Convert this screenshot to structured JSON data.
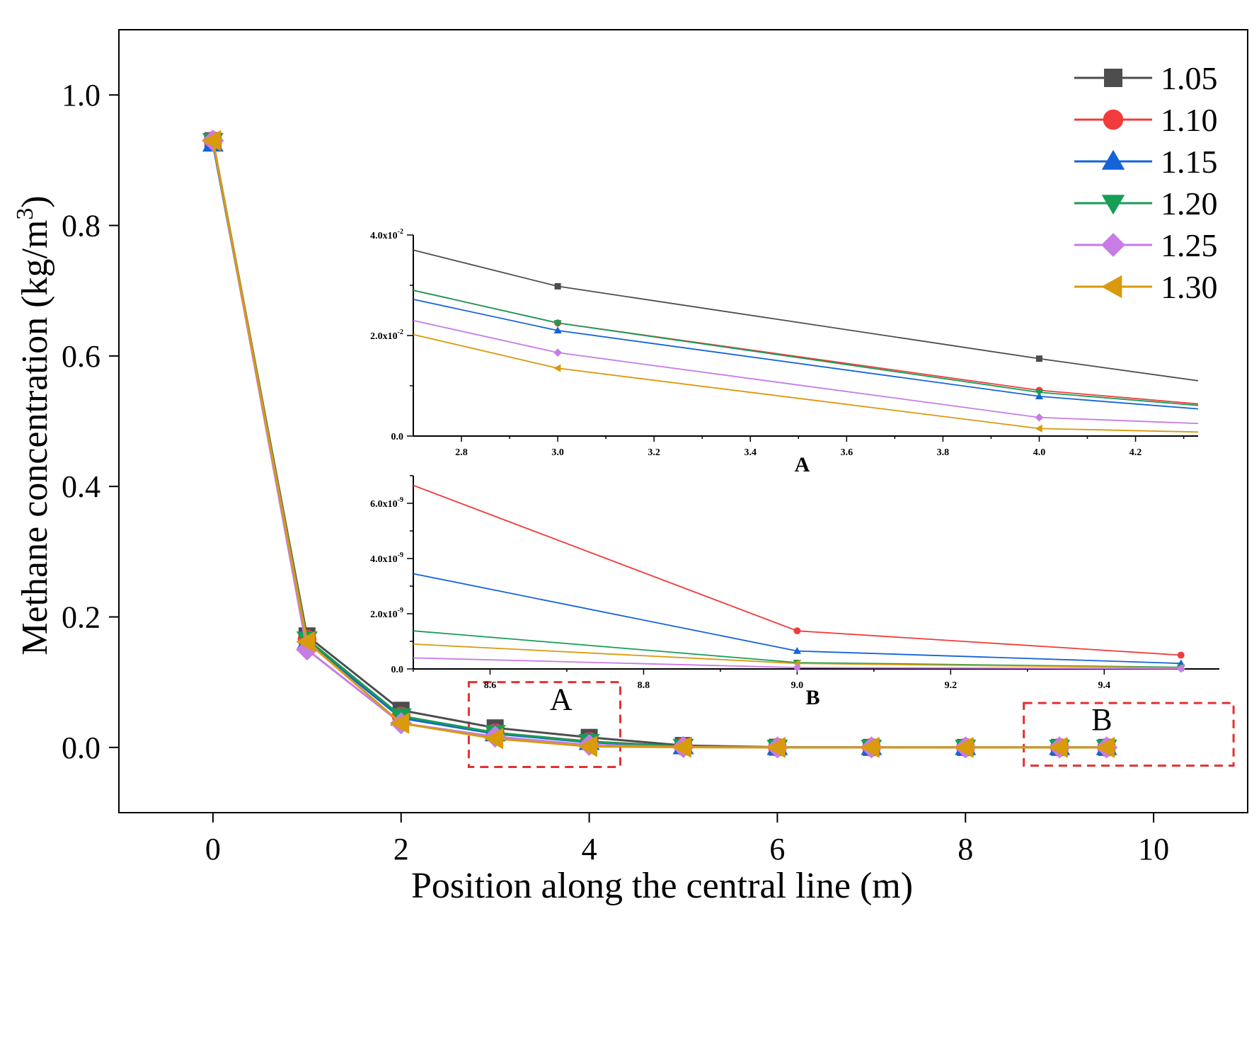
{
  "chart_data": [
    {
      "id": "main",
      "type": "line",
      "title": "",
      "xlabel": "Position along the central line (m)",
      "ylabel": "Methane concentration (kg/m",
      "ylabel_sup": "3",
      "ylabel_close": ")",
      "xlim": [
        -1,
        11
      ],
      "ylim": [
        -0.1,
        1.1
      ],
      "xticks": [
        0,
        2,
        4,
        6,
        8,
        10
      ],
      "yticks": [
        0.0,
        0.2,
        0.4,
        0.6,
        0.8,
        1.0
      ],
      "ytick_labels": [
        "0.0",
        "0.2",
        "0.4",
        "0.6",
        "0.8",
        "1.0"
      ],
      "grid": false,
      "legend_position": "top-right",
      "x": [
        0,
        1,
        2,
        3,
        4,
        5,
        6,
        7,
        8,
        9,
        9.5
      ],
      "series": [
        {
          "name": "1.05",
          "color": "#4d4d4d",
          "marker": "square",
          "values": [
            0.93,
            0.171,
            0.057,
            0.03,
            0.0154,
            0.003,
            0.0003,
            0.0,
            0.0,
            0.0,
            0.0
          ]
        },
        {
          "name": "1.10",
          "color": "#f03c3c",
          "marker": "circle",
          "values": [
            0.93,
            0.166,
            0.048,
            0.0225,
            0.0091,
            0.0015,
            0.0001,
            0.0,
            0.0,
            0.0,
            0.0
          ]
        },
        {
          "name": "1.15",
          "color": "#1464d8",
          "marker": "triangle-up",
          "values": [
            0.925,
            0.162,
            0.045,
            0.021,
            0.0078,
            0.0012,
            0.0001,
            0.0,
            0.0,
            0.0,
            0.0
          ]
        },
        {
          "name": "1.20",
          "color": "#159e56",
          "marker": "triangle-down",
          "values": [
            0.93,
            0.166,
            0.048,
            0.0225,
            0.0087,
            0.0014,
            0.0001,
            0.0,
            0.0,
            0.0,
            0.0
          ]
        },
        {
          "name": "1.25",
          "color": "#c77ce6",
          "marker": "diamond",
          "values": [
            0.93,
            0.15,
            0.037,
            0.0165,
            0.0037,
            0.0005,
            0.0,
            0.0,
            0.0,
            0.0,
            0.0
          ]
        },
        {
          "name": "1.30",
          "color": "#d99a0c",
          "marker": "triangle-left",
          "values": [
            0.93,
            0.162,
            0.037,
            0.0135,
            0.0015,
            0.0002,
            0.0,
            0.0,
            0.0,
            0.0,
            0.0
          ]
        }
      ],
      "annotations": [
        "A",
        "B"
      ]
    },
    {
      "id": "inset-A",
      "type": "line",
      "title": "A",
      "xlim": [
        2.7,
        4.33
      ],
      "ylim": [
        0,
        0.04
      ],
      "xticks": [
        2.8,
        3.0,
        3.2,
        3.4,
        3.6,
        3.8,
        4.0,
        4.2
      ],
      "xtick_labels": [
        "2.8",
        "3.0",
        "3.2",
        "3.4",
        "3.6",
        "3.8",
        "4.0",
        "4.2"
      ],
      "yticks": [
        0,
        0.02,
        0.04
      ],
      "ytick_labels": [
        {
          "base": "0.0",
          "exp": ""
        },
        {
          "base": "2.0x10",
          "exp": "-2"
        },
        {
          "base": "4.0x10",
          "exp": "-2"
        }
      ],
      "series": [
        {
          "name": "1.05",
          "points": [
            [
              2.7,
              0.037
            ],
            [
              3.0,
              0.0298
            ],
            [
              4.0,
              0.0154
            ],
            [
              4.33,
              0.011
            ]
          ]
        },
        {
          "name": "1.10",
          "points": [
            [
              2.7,
              0.029
            ],
            [
              3.0,
              0.0225
            ],
            [
              4.0,
              0.0091
            ],
            [
              4.33,
              0.0064
            ]
          ]
        },
        {
          "name": "1.15",
          "points": [
            [
              2.7,
              0.0272
            ],
            [
              3.0,
              0.021
            ],
            [
              4.0,
              0.0079
            ],
            [
              4.33,
              0.0054
            ]
          ]
        },
        {
          "name": "1.20",
          "points": [
            [
              2.7,
              0.029
            ],
            [
              3.0,
              0.0225
            ],
            [
              4.0,
              0.0087
            ],
            [
              4.33,
              0.0061
            ]
          ]
        },
        {
          "name": "1.25",
          "points": [
            [
              2.7,
              0.023
            ],
            [
              3.0,
              0.0166
            ],
            [
              4.0,
              0.0037
            ],
            [
              4.33,
              0.0025
            ]
          ]
        },
        {
          "name": "1.30",
          "points": [
            [
              2.7,
              0.0202
            ],
            [
              3.0,
              0.0135
            ],
            [
              4.0,
              0.0015
            ],
            [
              4.33,
              0.0008
            ]
          ]
        }
      ]
    },
    {
      "id": "inset-B",
      "type": "line",
      "title": "B",
      "xlim": [
        8.5,
        9.55
      ],
      "ylim": [
        0,
        7e-09
      ],
      "xticks": [
        8.6,
        8.8,
        9.0,
        9.2,
        9.4
      ],
      "xtick_labels": [
        "8.6",
        "8.8",
        "9.0",
        "9.2",
        "9.4"
      ],
      "yticks": [
        0,
        2e-09,
        4e-09,
        6e-09
      ],
      "ytick_labels": [
        {
          "base": "0.0",
          "exp": ""
        },
        {
          "base": "2.0x10",
          "exp": "-9"
        },
        {
          "base": "4.0x10",
          "exp": "-9"
        },
        {
          "base": "6.0x10",
          "exp": "-9"
        }
      ],
      "series": [
        {
          "name": "1.10",
          "points": [
            [
              8.5,
              6.65e-09
            ],
            [
              9.0,
              1.38e-09
            ],
            [
              9.5,
              5e-10
            ]
          ]
        },
        {
          "name": "1.15",
          "points": [
            [
              8.5,
              3.45e-09
            ],
            [
              9.0,
              6.5e-10
            ],
            [
              9.5,
              2e-10
            ]
          ]
        },
        {
          "name": "1.20",
          "points": [
            [
              8.5,
              1.38e-09
            ],
            [
              9.0,
              2.3e-10
            ],
            [
              9.5,
              6e-11
            ]
          ]
        },
        {
          "name": "1.30",
          "points": [
            [
              8.5,
              9e-10
            ],
            [
              9.0,
              2e-10
            ],
            [
              9.5,
              4e-11
            ]
          ]
        },
        {
          "name": "1.25",
          "points": [
            [
              8.5,
              4e-10
            ],
            [
              9.0,
              5e-11
            ],
            [
              9.5,
              1e-11
            ]
          ]
        }
      ]
    }
  ]
}
